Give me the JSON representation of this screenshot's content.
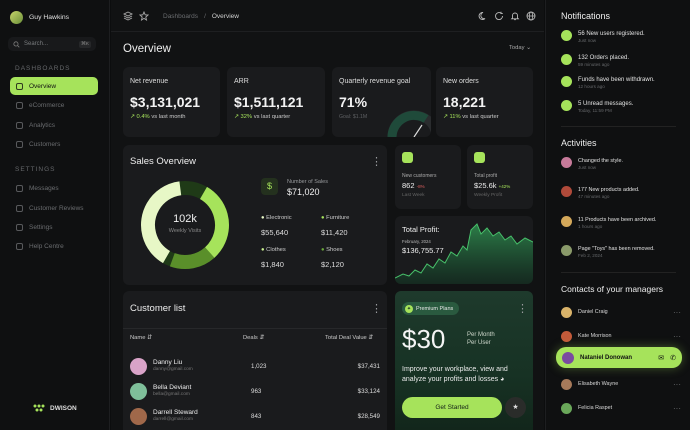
{
  "user": {
    "name": "Guy Hawkins"
  },
  "search": {
    "placeholder": "Search...",
    "shortcut": "⌘K"
  },
  "sidebar": {
    "dashboards_title": "DASHBOARDS",
    "dashboards": [
      {
        "label": "Overview"
      },
      {
        "label": "eCommerce"
      },
      {
        "label": "Analytics"
      },
      {
        "label": "Customers"
      }
    ],
    "settings_title": "SETTINGS",
    "settings": [
      {
        "label": "Messages"
      },
      {
        "label": "Customer Reviews"
      },
      {
        "label": "Settings"
      },
      {
        "label": "Help Centre"
      }
    ],
    "brand": "DWISON"
  },
  "header": {
    "breadcrumb_parent": "Dashboards",
    "breadcrumb_sep": "/",
    "breadcrumb_current": "Overview"
  },
  "overview": {
    "title": "Overview",
    "range": "Today"
  },
  "stats": [
    {
      "label": "Net revenue",
      "value": "$3,131,021",
      "change": "0.4%",
      "note": "vs last month"
    },
    {
      "label": "ARR",
      "value": "$1,511,121",
      "change": "32%",
      "note": "vs last quarter"
    },
    {
      "label": "Quarterly revenue goal",
      "value": "71%",
      "goal": "Goal: $1.1M"
    },
    {
      "label": "New orders",
      "value": "18,221",
      "change": "11%",
      "note": "vs last quarter"
    }
  ],
  "sales": {
    "title": "Sales Overview",
    "center_value": "102k",
    "center_label": "Weekly Visits",
    "num_label": "Number of Sales",
    "num_value": "$71,020",
    "items": [
      {
        "label": "Electronic",
        "value": "$55,640"
      },
      {
        "label": "Furniture",
        "value": "$11,420"
      },
      {
        "label": "Clothes",
        "value": "$1,840"
      },
      {
        "label": "Shoes",
        "value": "$2,120"
      }
    ]
  },
  "mini": [
    {
      "label": "New customers",
      "value": "862",
      "badge": "-8%",
      "sub": "Last Week"
    },
    {
      "label": "Total profit",
      "value": "$25.6k",
      "badge": "+42%",
      "sub": "Weekly Profit"
    }
  ],
  "profit": {
    "title": "Total Profit:",
    "date": "February, 2024",
    "value": "$136,755.77"
  },
  "customers": {
    "title": "Customer list",
    "col_name": "Name",
    "col_deals": "Deals",
    "col_total": "Total Deal Value",
    "rows": [
      {
        "name": "Danny Liu",
        "email": "danny@gmail.com",
        "deals": "1,023",
        "total": "$37,431"
      },
      {
        "name": "Bella Deviant",
        "email": "bella@gmail.com",
        "deals": "963",
        "total": "$33,124"
      },
      {
        "name": "Darrell Steward",
        "email": "darrell@gmail.com",
        "deals": "843",
        "total": "$28,549"
      }
    ]
  },
  "premium": {
    "badge": "Premium Plans",
    "price": "$30",
    "per1": "Per Month",
    "per2": "Per User",
    "desc": "Improve your workplace, view and analyze your profits and losses",
    "cta": "Get Started"
  },
  "notifications": {
    "title": "Notifications",
    "items": [
      {
        "text": "56 New users registered.",
        "time": "Just now"
      },
      {
        "text": "132 Orders placed.",
        "time": "59 minutes ago"
      },
      {
        "text": "Funds have been withdrawn.",
        "time": "12 hours ago"
      },
      {
        "text": "5 Unread messages.",
        "time": "Today, 11:59 PM"
      }
    ]
  },
  "activities": {
    "title": "Activities",
    "items": [
      {
        "text": "Changed the style.",
        "time": "Just now"
      },
      {
        "text": "177 New products added.",
        "time": "47 minutes ago"
      },
      {
        "text": "11 Products have been archived.",
        "time": "1 hours ago"
      },
      {
        "text": "Page \"Toys\" has been removed.",
        "time": "Feb 2, 2024"
      }
    ]
  },
  "managers": {
    "title": "Contacts of your managers",
    "items": [
      {
        "name": "Daniel Craig"
      },
      {
        "name": "Kate Morrison"
      },
      {
        "name": "Nataniel Donowan"
      },
      {
        "name": "Elisabeth Wayne"
      },
      {
        "name": "Felicia Raspet"
      }
    ]
  },
  "colors": {
    "accent": "#a6e35b",
    "bg": "#111213",
    "card": "#1a1b1d"
  }
}
